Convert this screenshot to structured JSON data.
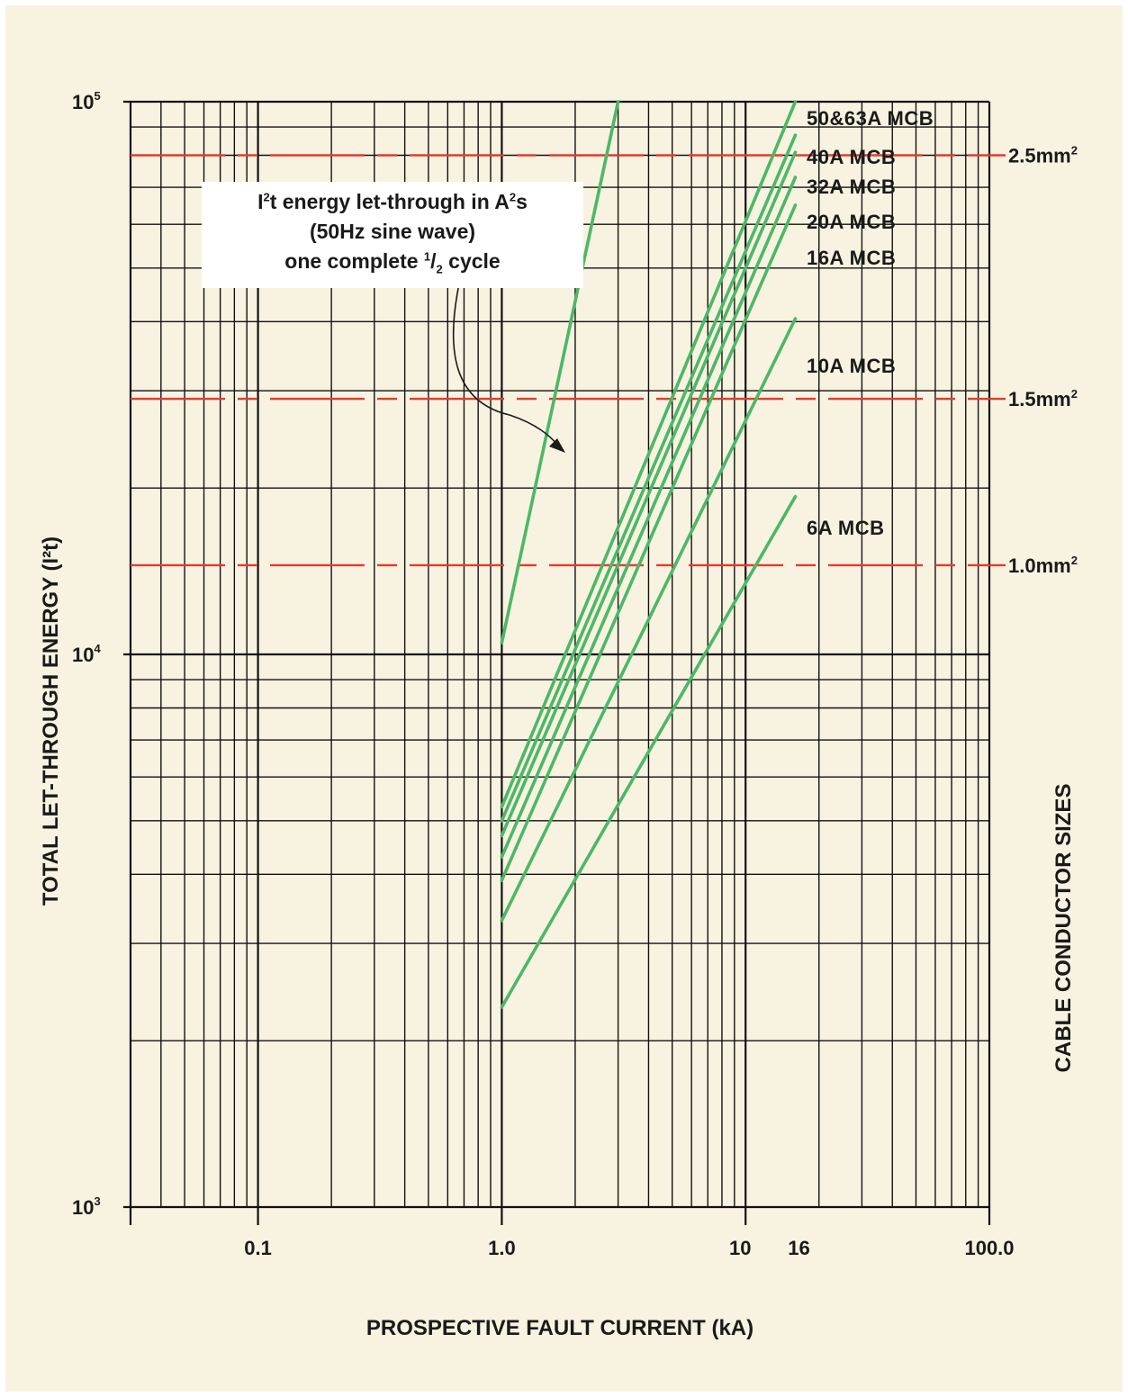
{
  "chart_data": {
    "type": "line",
    "x_scale": "log",
    "y_scale": "log",
    "xlim": [
      0.03,
      100
    ],
    "ylim": [
      1000,
      100000
    ],
    "xlabel": "PROSPECTIVE FAULT CURRENT (kA)",
    "ylabel": "TOTAL LET-THROUGH ENERGY (I²t)",
    "right_label": "CABLE CONDUCTOR SIZES",
    "x_ticks": [
      {
        "value": 0.1,
        "label": "0.1"
      },
      {
        "value": 1,
        "label": "1.0"
      },
      {
        "value": 10,
        "label": "10"
      },
      {
        "value": 16,
        "label": "16"
      },
      {
        "value": 100,
        "label": "100.0"
      }
    ],
    "y_ticks": [
      {
        "value": 100000,
        "base": "10",
        "exp": "5"
      },
      {
        "value": 10000,
        "base": "10",
        "exp": "4"
      },
      {
        "value": 1000,
        "base": "10",
        "exp": "3"
      }
    ],
    "grid": true,
    "series": [
      {
        "name": "I²t half cycle",
        "x": [
          1,
          3
        ],
        "y": [
          10500,
          100000
        ]
      },
      {
        "name": "50&63A MCB",
        "x": [
          1,
          16
        ],
        "y": [
          5300,
          100000
        ]
      },
      {
        "name": "40A MCB",
        "x": [
          1,
          16
        ],
        "y": [
          5000,
          87000
        ]
      },
      {
        "name": "32A MCB",
        "x": [
          1,
          16
        ],
        "y": [
          4700,
          81000
        ]
      },
      {
        "name": "20A MCB",
        "x": [
          1,
          16
        ],
        "y": [
          4300,
          73000
        ]
      },
      {
        "name": "16A MCB",
        "x": [
          1,
          16
        ],
        "y": [
          3900,
          65000
        ]
      },
      {
        "name": "10A MCB",
        "x": [
          1,
          16
        ],
        "y": [
          3300,
          40500
        ]
      },
      {
        "name": "6A MCB",
        "x": [
          1,
          16
        ],
        "y": [
          2300,
          19300
        ]
      }
    ],
    "reference_lines": [
      {
        "label": "2.5mm",
        "sup": "2",
        "y": 80000
      },
      {
        "label": "1.5mm",
        "sup": "2",
        "y": 29000
      },
      {
        "label": "1.0mm",
        "sup": "2",
        "y": 14500
      }
    ],
    "annotation": {
      "line1_a": "I",
      "line1_sup1": "2",
      "line1_b": "t energy let-through in A",
      "line1_sup2": "2",
      "line1_c": "s",
      "line2": "(50Hz sine wave)",
      "line3_a": "one complete ",
      "line3_num": "1",
      "line3_slash": "/",
      "line3_den": "2",
      "line3_b": " cycle"
    },
    "colors": {
      "curve": "#4cb866",
      "reference": "#e23b2e",
      "grid": "#111111",
      "background": "#f8f3e1"
    }
  }
}
